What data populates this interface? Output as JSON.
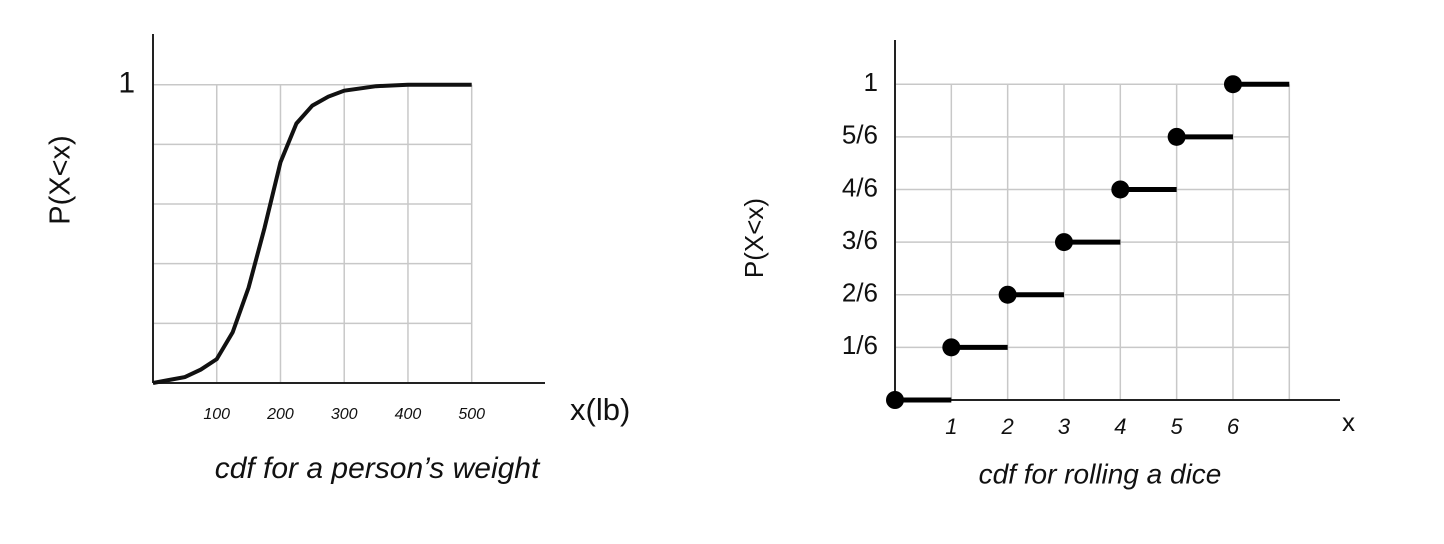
{
  "chart_data": [
    {
      "type": "line",
      "caption": "cdf for a person’s weight",
      "x_label": "x(lb)",
      "y_label": "P(X<x)",
      "x": [
        0,
        25,
        50,
        75,
        100,
        125,
        150,
        175,
        200,
        225,
        250,
        275,
        300,
        350,
        400,
        450,
        500
      ],
      "values": [
        0,
        0.01,
        0.02,
        0.045,
        0.08,
        0.17,
        0.32,
        0.52,
        0.74,
        0.87,
        0.93,
        0.96,
        0.98,
        0.995,
        1,
        1,
        1
      ],
      "color": "#111111",
      "xlim": [
        0,
        615
      ],
      "ylim": [
        0,
        1.17
      ],
      "xticks": [
        100,
        200,
        300,
        400,
        500
      ],
      "yticks": [
        1
      ],
      "ygrid": [
        0.2,
        0.4,
        0.6,
        0.8,
        1
      ],
      "grid": true
    },
    {
      "type": "step",
      "caption": "cdf for rolling a dice",
      "x_label": "x",
      "y_label": "P(X<x)",
      "x": [
        0,
        1,
        2,
        3,
        4,
        5,
        6
      ],
      "values": [
        0,
        0.16667,
        0.33333,
        0.5,
        0.66667,
        0.83333,
        1
      ],
      "color": "#000000",
      "xlim": [
        0,
        7.9
      ],
      "ylim": [
        0,
        1.14
      ],
      "xticks": [
        1,
        2,
        3,
        4,
        5,
        6
      ],
      "xgrid": [
        1,
        2,
        3,
        4,
        5,
        6,
        7
      ],
      "yticks": [
        {
          "value": 0.16667,
          "label": "1/6"
        },
        {
          "value": 0.33333,
          "label": "2/6"
        },
        {
          "value": 0.5,
          "label": "3/6"
        },
        {
          "value": 0.66667,
          "label": "4/6"
        },
        {
          "value": 0.83333,
          "label": "5/6"
        },
        1
      ],
      "grid": true
    }
  ]
}
